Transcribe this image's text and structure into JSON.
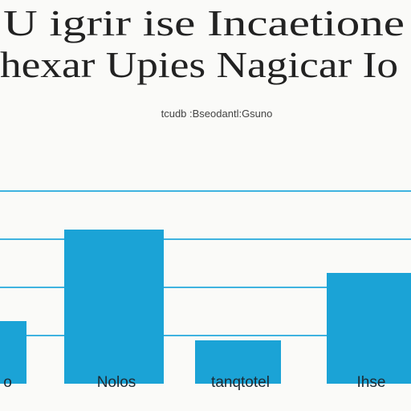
{
  "chart_data": {
    "type": "bar",
    "title": [
      "U igrir ise Incaetione",
      "hexar Upies Nagicar Io"
    ],
    "subtitle": "tcudb :Bseodantl:Gsuno",
    "categories": [
      "o",
      "Nolos",
      "tanqtotel",
      "Ihse"
    ],
    "values": [
      1.3,
      3.2,
      0.9,
      2.3
    ],
    "color": "#1ba3d6",
    "ylim": [
      0,
      4.4
    ],
    "yticks": [
      1,
      2,
      3,
      4
    ],
    "grid": true
  }
}
